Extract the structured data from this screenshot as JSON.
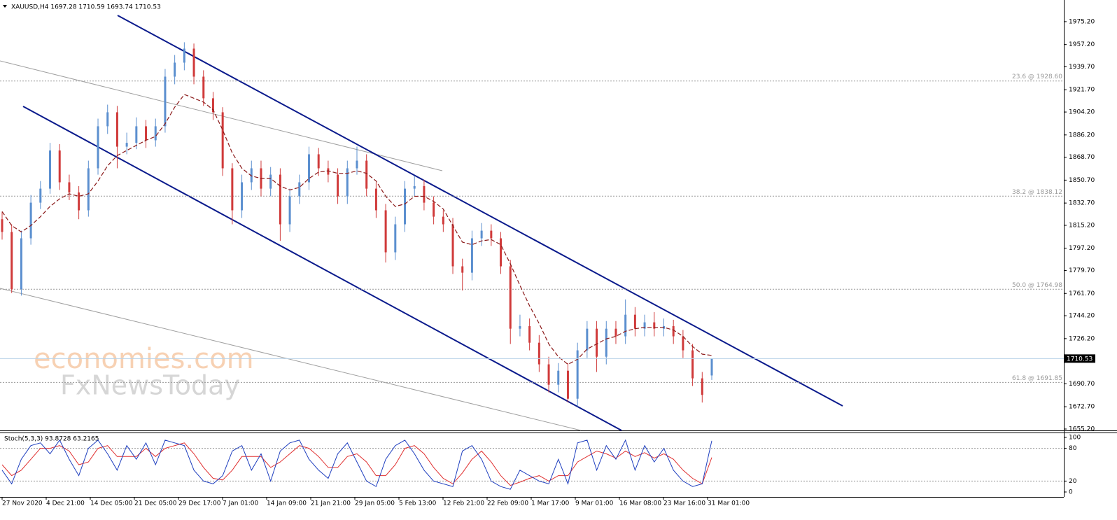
{
  "chart_data": {
    "type": "candlestick",
    "title": "XAUUSD,H4  1697.28 1710.59 1693.74 1710.53",
    "watermark": [
      "economies.com",
      "FxNewsToday"
    ],
    "up_color": "#5b8fcf",
    "down_color": "#d03a3a",
    "ma_color": "#8b1a1a",
    "ylim": [
      1654.1,
      1992.2
    ],
    "yticks": [
      {
        "value": 1975.2,
        "label": "1975.20"
      },
      {
        "value": 1957.2,
        "label": "1957.20"
      },
      {
        "value": 1939.7,
        "label": "1939.70"
      },
      {
        "value": 1921.7,
        "label": "1921.70"
      },
      {
        "value": 1904.2,
        "label": "1904.20"
      },
      {
        "value": 1886.2,
        "label": "1886.20"
      },
      {
        "value": 1868.7,
        "label": "1868.70"
      },
      {
        "value": 1850.7,
        "label": "1850.70"
      },
      {
        "value": 1832.7,
        "label": "1832.70"
      },
      {
        "value": 1815.2,
        "label": "1815.20"
      },
      {
        "value": 1797.2,
        "label": "1797.20"
      },
      {
        "value": 1779.7,
        "label": "1779.70"
      },
      {
        "value": 1761.7,
        "label": "1761.70"
      },
      {
        "value": 1744.2,
        "label": "1744.20"
      },
      {
        "value": 1726.2,
        "label": "1726.20"
      },
      {
        "value": 1690.7,
        "label": "1690.70"
      },
      {
        "value": 1672.7,
        "label": "1672.70"
      },
      {
        "value": 1655.2,
        "label": "1655.20"
      }
    ],
    "last_price": {
      "value": 1710.53,
      "label": "1710.53"
    },
    "fib_levels": [
      {
        "price": 1928.6,
        "label": "23.6 @ 1928.60"
      },
      {
        "price": 1838.12,
        "label": "38.2 @ 1838.12"
      },
      {
        "price": 1764.98,
        "label": "50.0 @ 1764.98"
      },
      {
        "price": 1691.85,
        "label": "61.8 @ 1691.85"
      }
    ],
    "time_labels": [
      "27 Nov 2020",
      "4 Dec 21:00",
      "14 Dec 05:00",
      "21 Dec 05:00",
      "29 Dec 17:00",
      "7 Jan 01:00",
      "14 Jan 09:00",
      "21 Jan 21:00",
      "29 Jan 05:00",
      "5 Feb 13:00",
      "12 Feb 21:00",
      "22 Feb 09:00",
      "1 Mar 17:00",
      "9 Mar 01:00",
      "16 Mar 08:00",
      "23 Mar 16:00",
      "31 Mar 01:00"
    ],
    "candles": [
      [
        1820,
        1826,
        1804,
        1810
      ],
      [
        1810,
        1816,
        1762,
        1765
      ],
      [
        1765,
        1811,
        1760,
        1805
      ],
      [
        1805,
        1839,
        1800,
        1833
      ],
      [
        1833,
        1850,
        1828,
        1844
      ],
      [
        1844,
        1880,
        1840,
        1874
      ],
      [
        1874,
        1879,
        1843,
        1849
      ],
      [
        1849,
        1855,
        1835,
        1841
      ],
      [
        1841,
        1846,
        1820,
        1827
      ],
      [
        1827,
        1866,
        1822,
        1860
      ],
      [
        1860,
        1899,
        1855,
        1893
      ],
      [
        1893,
        1910,
        1887,
        1904
      ],
      [
        1904,
        1909,
        1860,
        1877
      ],
      [
        1877,
        1888,
        1871,
        1880
      ],
      [
        1880,
        1900,
        1875,
        1893
      ],
      [
        1893,
        1898,
        1876,
        1882
      ],
      [
        1882,
        1899,
        1877,
        1893
      ],
      [
        1893,
        1938,
        1888,
        1932
      ],
      [
        1932,
        1949,
        1926,
        1943
      ],
      [
        1943,
        1959,
        1937,
        1954
      ],
      [
        1954,
        1958,
        1926,
        1932
      ],
      [
        1932,
        1937,
        1909,
        1915
      ],
      [
        1915,
        1920,
        1898,
        1904
      ],
      [
        1904,
        1908,
        1854,
        1860
      ],
      [
        1860,
        1864,
        1816,
        1827
      ],
      [
        1827,
        1855,
        1821,
        1849
      ],
      [
        1849,
        1866,
        1843,
        1860
      ],
      [
        1860,
        1866,
        1838,
        1844
      ],
      [
        1844,
        1861,
        1838,
        1855
      ],
      [
        1855,
        1860,
        1803,
        1816
      ],
      [
        1816,
        1844,
        1810,
        1838
      ],
      [
        1838,
        1855,
        1832,
        1849
      ],
      [
        1849,
        1877,
        1843,
        1871
      ],
      [
        1871,
        1876,
        1854,
        1860
      ],
      [
        1860,
        1866,
        1849,
        1855
      ],
      [
        1855,
        1860,
        1832,
        1838
      ],
      [
        1838,
        1866,
        1832,
        1860
      ],
      [
        1860,
        1877,
        1855,
        1866
      ],
      [
        1866,
        1871,
        1838,
        1844
      ],
      [
        1844,
        1849,
        1821,
        1827
      ],
      [
        1827,
        1832,
        1786,
        1794
      ],
      [
        1794,
        1822,
        1788,
        1816
      ],
      [
        1816,
        1850,
        1810,
        1844
      ],
      [
        1844,
        1854,
        1838,
        1846
      ],
      [
        1846,
        1851,
        1827,
        1833
      ],
      [
        1833,
        1838,
        1816,
        1822
      ],
      [
        1822,
        1827,
        1810,
        1816
      ],
      [
        1816,
        1821,
        1777,
        1783
      ],
      [
        1783,
        1789,
        1764,
        1778
      ],
      [
        1778,
        1811,
        1772,
        1805
      ],
      [
        1805,
        1817,
        1799,
        1811
      ],
      [
        1811,
        1816,
        1799,
        1805
      ],
      [
        1805,
        1810,
        1777,
        1783
      ],
      [
        1783,
        1788,
        1722,
        1734
      ],
      [
        1734,
        1745,
        1728,
        1736
      ],
      [
        1736,
        1742,
        1717,
        1723
      ],
      [
        1723,
        1729,
        1700,
        1706
      ],
      [
        1706,
        1712,
        1684,
        1690
      ],
      [
        1690,
        1707,
        1684,
        1701
      ],
      [
        1701,
        1707,
        1676,
        1679
      ],
      [
        1679,
        1723,
        1673,
        1717
      ],
      [
        1717,
        1740,
        1711,
        1734
      ],
      [
        1734,
        1740,
        1700,
        1712
      ],
      [
        1712,
        1740,
        1706,
        1734
      ],
      [
        1734,
        1740,
        1722,
        1728
      ],
      [
        1728,
        1757,
        1722,
        1745
      ],
      [
        1745,
        1751,
        1728,
        1734
      ],
      [
        1734,
        1745,
        1728,
        1739
      ],
      [
        1739,
        1747,
        1728,
        1734
      ],
      [
        1734,
        1742,
        1728,
        1736
      ],
      [
        1736,
        1741,
        1722,
        1728
      ],
      [
        1728,
        1733,
        1711,
        1717
      ],
      [
        1717,
        1722,
        1689,
        1695
      ],
      [
        1695,
        1700,
        1676,
        1682
      ],
      [
        1697.28,
        1710.59,
        1693.74,
        1710.53
      ]
    ],
    "ma": [
      1826,
      1815,
      1810,
      1815,
      1822,
      1830,
      1836,
      1840,
      1838,
      1840,
      1850,
      1862,
      1870,
      1874,
      1878,
      1882,
      1885,
      1895,
      1908,
      1918,
      1915,
      1912,
      1906,
      1890,
      1872,
      1860,
      1854,
      1852,
      1852,
      1846,
      1843,
      1845,
      1852,
      1857,
      1858,
      1856,
      1856,
      1858,
      1856,
      1850,
      1838,
      1830,
      1832,
      1838,
      1838,
      1834,
      1828,
      1815,
      1802,
      1800,
      1803,
      1804,
      1800,
      1785,
      1768,
      1752,
      1738,
      1722,
      1712,
      1706,
      1710,
      1718,
      1722,
      1726,
      1728,
      1732,
      1734,
      1735,
      1735,
      1735,
      1733,
      1728,
      1720,
      1714,
      1713
    ],
    "stoch": {
      "label": "Stoch(5,3,3) 93.8728 63.2165",
      "main_color": "#1f3fbf",
      "signal_color": "#e03030",
      "ylim": [
        -9,
        109
      ],
      "yticks": [
        100,
        80,
        20,
        0
      ],
      "levels": [
        80,
        20
      ],
      "main": [
        40,
        15,
        60,
        85,
        90,
        70,
        95,
        60,
        30,
        80,
        95,
        70,
        40,
        85,
        60,
        90,
        50,
        95,
        90,
        85,
        40,
        20,
        15,
        30,
        75,
        85,
        40,
        70,
        20,
        75,
        90,
        95,
        60,
        40,
        25,
        70,
        90,
        55,
        20,
        10,
        60,
        85,
        95,
        70,
        40,
        20,
        15,
        10,
        75,
        85,
        60,
        20,
        10,
        5,
        40,
        30,
        20,
        15,
        60,
        15,
        90,
        95,
        40,
        85,
        60,
        95,
        40,
        85,
        55,
        80,
        40,
        20,
        10,
        15,
        93.8728
      ],
      "signal": [
        50,
        30,
        40,
        60,
        80,
        80,
        85,
        75,
        50,
        55,
        80,
        85,
        65,
        65,
        65,
        80,
        65,
        80,
        85,
        90,
        70,
        45,
        25,
        22,
        40,
        65,
        65,
        65,
        45,
        55,
        70,
        85,
        80,
        65,
        45,
        45,
        65,
        70,
        55,
        30,
        30,
        50,
        80,
        85,
        70,
        45,
        25,
        15,
        35,
        60,
        75,
        55,
        30,
        12,
        18,
        25,
        30,
        20,
        30,
        30,
        55,
        65,
        75,
        70,
        62,
        75,
        65,
        72,
        62,
        70,
        60,
        40,
        25,
        15,
        63.2165
      ]
    }
  }
}
